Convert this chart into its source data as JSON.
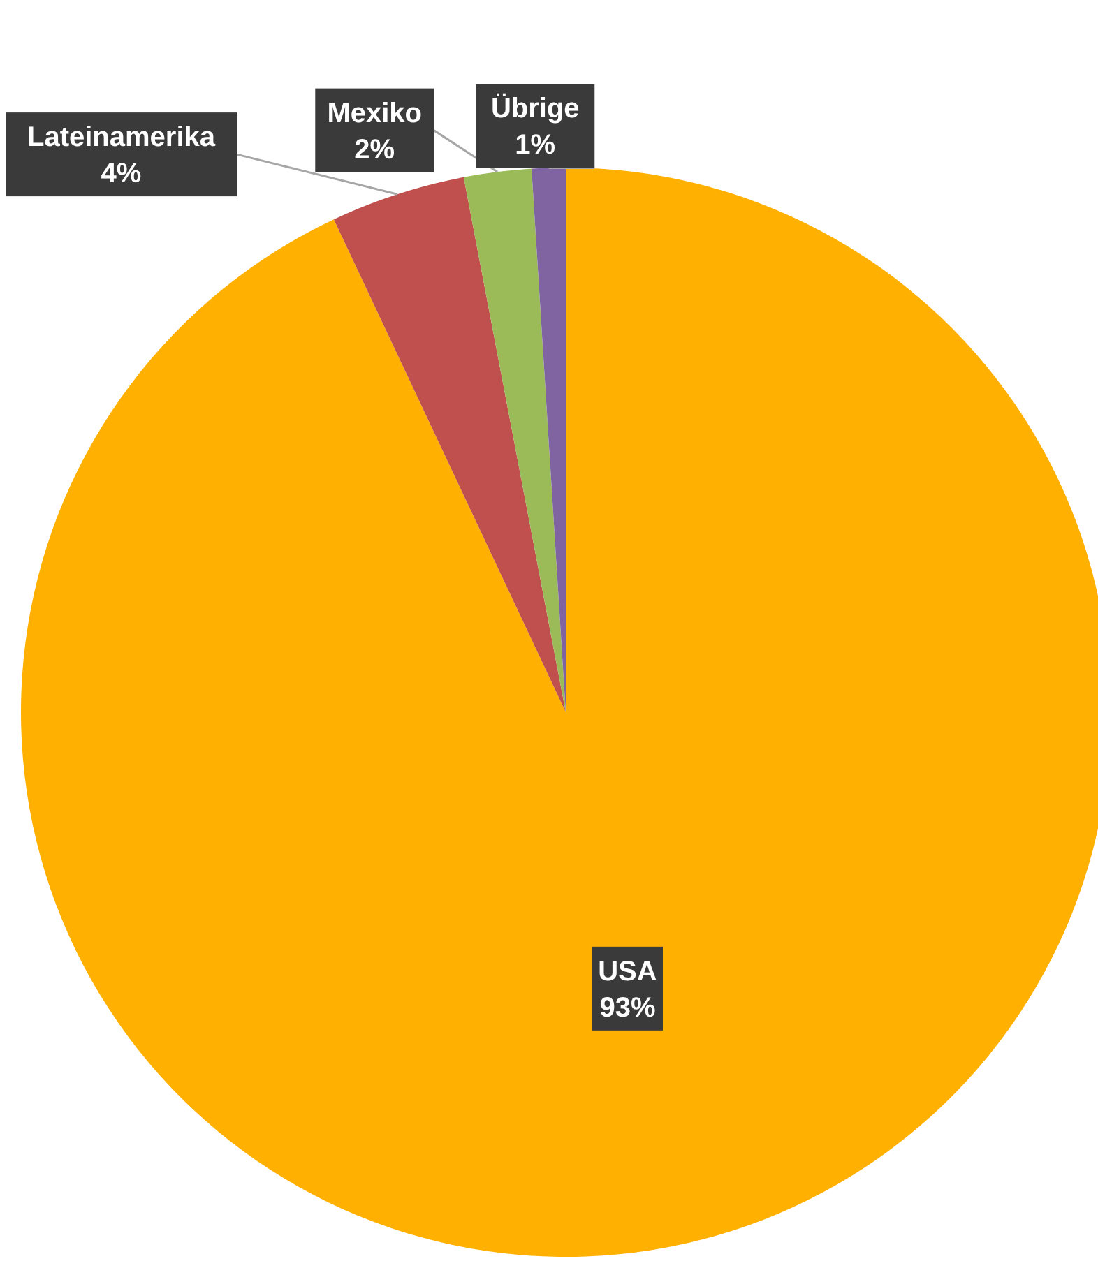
{
  "chart_data": {
    "type": "pie",
    "categories": [
      "USA",
      "Lateinamerika",
      "Mexiko",
      "Übrige"
    ],
    "values": [
      93,
      4,
      2,
      1
    ],
    "value_labels": [
      "93%",
      "4%",
      "2%",
      "1%"
    ],
    "colors": [
      "#ffb000",
      "#c0504d",
      "#9bbb59",
      "#8064a2"
    ]
  }
}
